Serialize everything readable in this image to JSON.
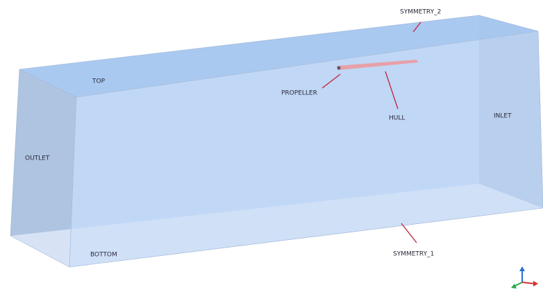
{
  "labels": {
    "symmetry_2": "SYMMETRY_2",
    "top": "TOP",
    "propeller": "PROPELLER",
    "hull": "HULL",
    "inlet": "INLET",
    "outlet": "OUTLET",
    "bottom": "BOTTOM",
    "symmetry_1": "SYMMETRY_1"
  }
}
